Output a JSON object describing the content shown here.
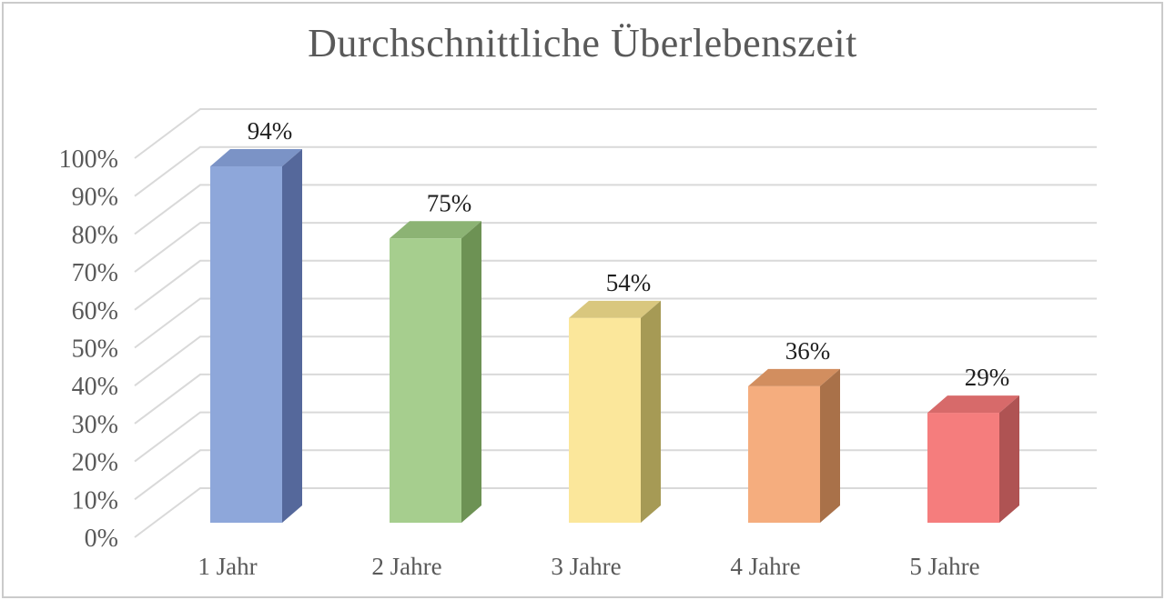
{
  "title": "Durchschnittliche Überlebenszeit",
  "frame": {
    "border_color": "#cbcbcb",
    "background": "#ffffff"
  },
  "chart_data": {
    "type": "bar",
    "style": "3d-column",
    "title": "Durchschnittliche Überlebenszeit",
    "categories": [
      "1 Jahr",
      "2 Jahre",
      "3 Jahre",
      "4 Jahre",
      "5 Jahre"
    ],
    "values": [
      94,
      75,
      54,
      36,
      29
    ],
    "data_labels": [
      "94%",
      "75%",
      "54%",
      "36%",
      "29%"
    ],
    "y_tick_labels": [
      "0%",
      "10%",
      "20%",
      "30%",
      "40%",
      "50%",
      "60%",
      "70%",
      "80%",
      "90%",
      "100%"
    ],
    "ylim": [
      0,
      100
    ],
    "y_step": 10,
    "xlabel": "",
    "ylabel": "",
    "grid": true,
    "legend": false,
    "colors": {
      "grid": "#d9d9d9",
      "axis_text": "#595959",
      "data_label_text": "#1f1f1f",
      "title_text": "#595959",
      "bars": [
        {
          "name": "blue",
          "front": "#8EA7DA",
          "top": "#7B93C6",
          "side": "#55689B"
        },
        {
          "name": "green",
          "front": "#A6CE8E",
          "top": "#8CB374",
          "side": "#6D9254"
        },
        {
          "name": "yellow",
          "front": "#FBE79B",
          "top": "#D9C77E",
          "side": "#A69A55"
        },
        {
          "name": "orange",
          "front": "#F5AD7E",
          "top": "#D28E5F",
          "side": "#A97149"
        },
        {
          "name": "red",
          "front": "#F57D7D",
          "top": "#D76A6A",
          "side": "#AF5353"
        }
      ]
    }
  }
}
